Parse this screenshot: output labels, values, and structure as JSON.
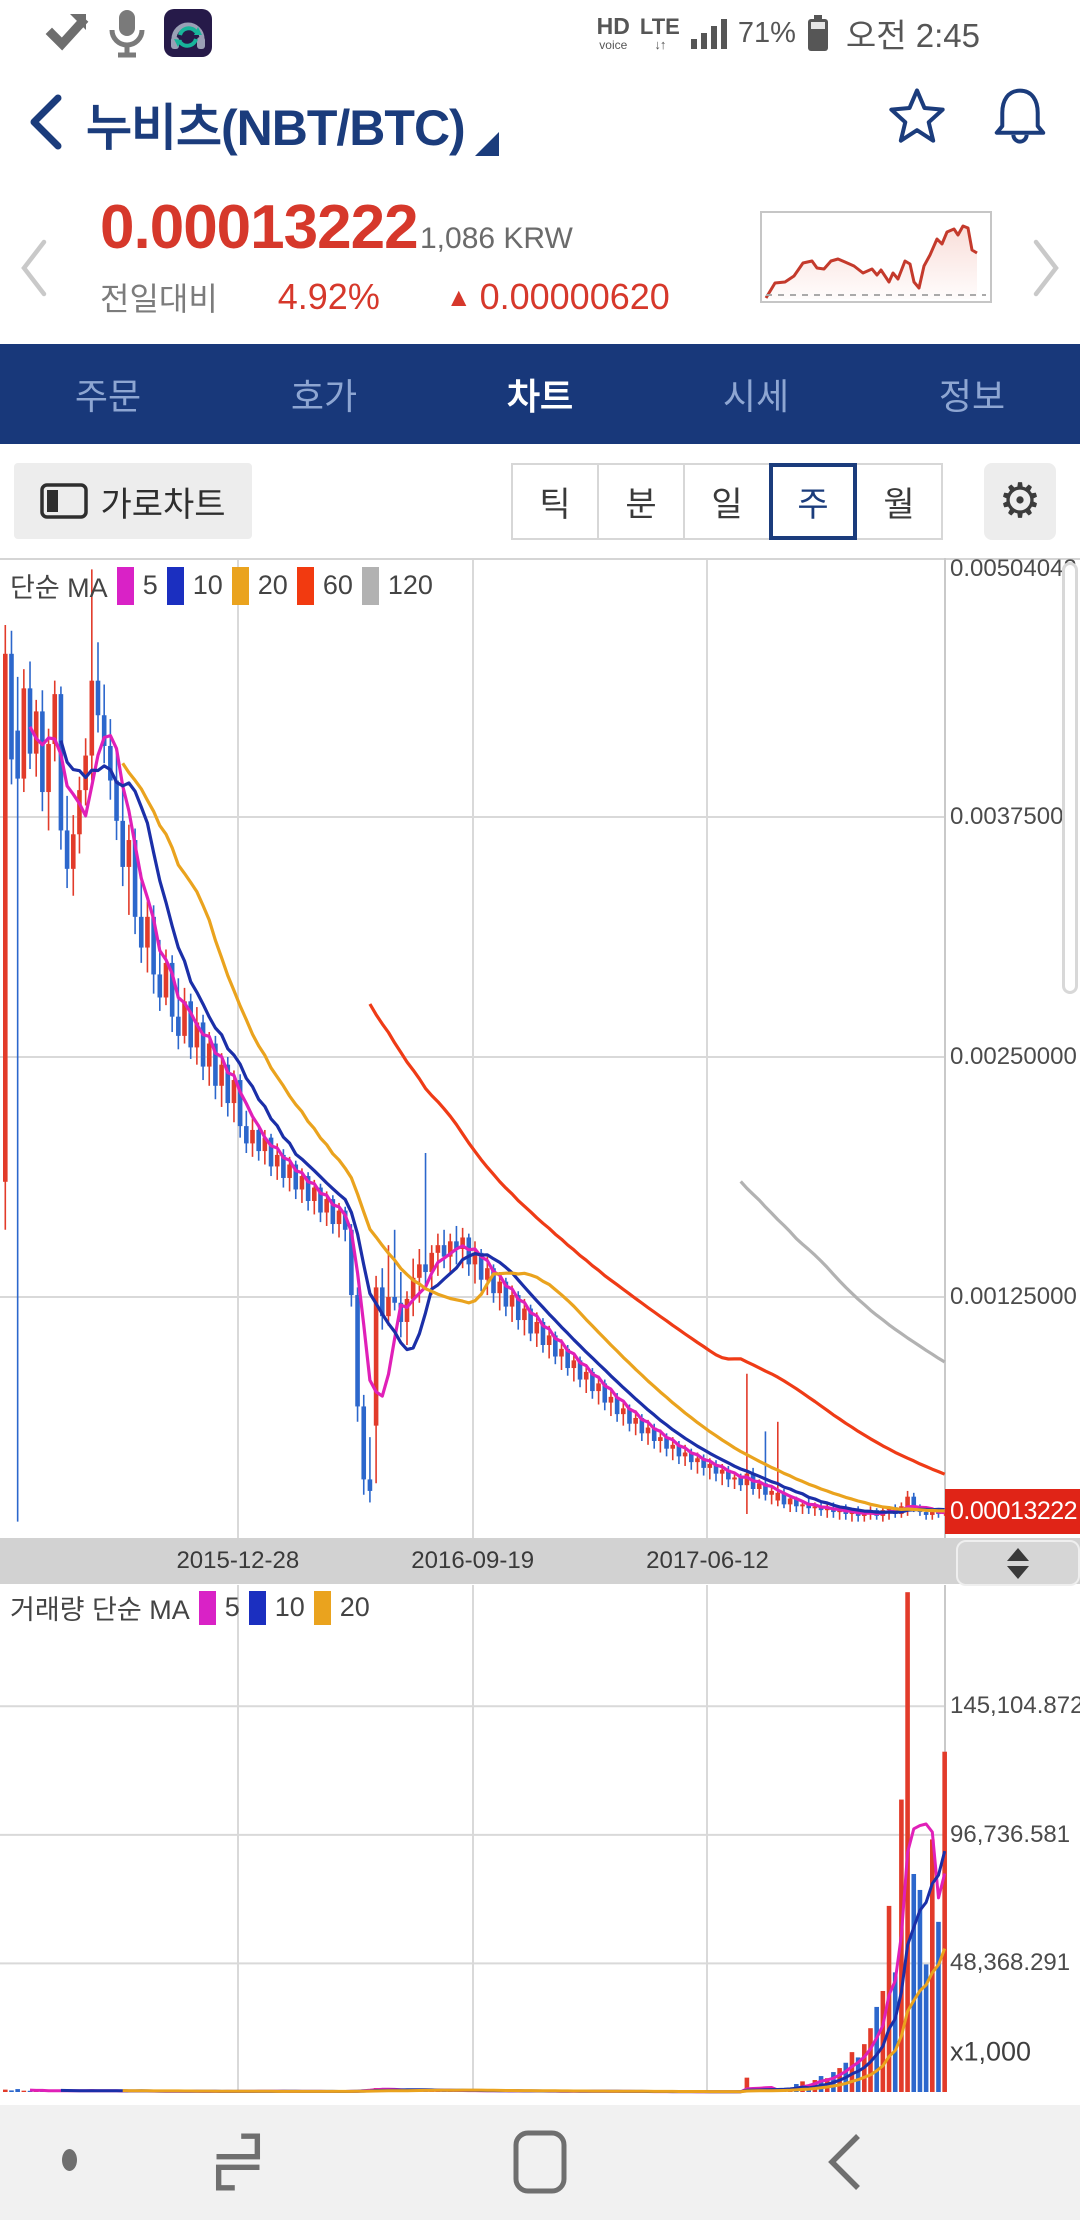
{
  "status_bar": {
    "time": "오전 2:45",
    "battery_pct": "71%",
    "network": "LTE",
    "network_arrows": "↓↑",
    "hd": "HD",
    "hd_sub": "voice",
    "left_icons": [
      "check-badge-icon",
      "microphone-icon",
      "music-sync-app-icon"
    ]
  },
  "header": {
    "title": "누비츠(NBT/BTC)"
  },
  "price_block": {
    "price": "0.00013222",
    "krw": "1,086 KRW",
    "change_label": "전일대비",
    "change_pct": "4.92%",
    "change_arrow": "▲",
    "change_value": "0.00000620"
  },
  "tabs": [
    {
      "label": "주문",
      "active": false
    },
    {
      "label": "호가",
      "active": false
    },
    {
      "label": "차트",
      "active": true
    },
    {
      "label": "시세",
      "active": false
    },
    {
      "label": "정보",
      "active": false
    }
  ],
  "controls": {
    "landscape_label": "가로차트",
    "gear_glyph": "⚙",
    "periods": [
      {
        "label": "틱",
        "selected": false
      },
      {
        "label": "분",
        "selected": false
      },
      {
        "label": "일",
        "selected": false
      },
      {
        "label": "주",
        "selected": true
      },
      {
        "label": "월",
        "selected": false
      }
    ]
  },
  "chart_data": {
    "type": "candlestick_volume",
    "note": "weekly candles [open,high,low,close,volume]; prices in units of 0.00001 BTC, volume in thousands",
    "up_color": "#e23b2a",
    "down_color": "#2c67cc",
    "grid_color": "#d9d9d9",
    "legend_main": {
      "title": "단순 MA",
      "items": [
        {
          "label": "5",
          "color": "#d922c6"
        },
        {
          "label": "10",
          "color": "#1b2fc0"
        },
        {
          "label": "20",
          "color": "#eaa31e"
        },
        {
          "label": "60",
          "color": "#f23a10"
        },
        {
          "label": "120",
          "color": "#b2b2b2"
        }
      ]
    },
    "legend_volume": {
      "title": "거래량 단순 MA",
      "items": [
        {
          "label": "5",
          "color": "#d922c6"
        },
        {
          "label": "10",
          "color": "#1b2fc0"
        },
        {
          "label": "20",
          "color": "#eaa31e"
        }
      ]
    },
    "ma_periods": [
      5,
      10,
      20,
      60,
      120
    ],
    "ma_colors": [
      "#e020b8",
      "#1b2fa8",
      "#eaa31e",
      "#ef3b16",
      "#b2b2b2"
    ],
    "vol_ma_periods": [
      5,
      10,
      20
    ],
    "vol_ma_colors": [
      "#e020b8",
      "#1b2fa8",
      "#eaa31e"
    ],
    "price_axis": [
      {
        "label": "0.00504043",
        "value": 504.043,
        "grid": false
      },
      {
        "label": "0.00375000",
        "value": 375,
        "grid": true
      },
      {
        "label": "0.00250000",
        "value": 250,
        "grid": true
      },
      {
        "label": "0.00125000",
        "value": 125,
        "grid": true
      }
    ],
    "last_price_label": "0.00013222",
    "x_axis_dates": [
      {
        "label": "2015-12-28",
        "week": 38
      },
      {
        "label": "2016-09-19",
        "week": 76
      },
      {
        "label": "2017-06-12",
        "week": 114
      }
    ],
    "volume_axis": [
      {
        "label": "145,104.872",
        "value": 145104.872
      },
      {
        "label": "96,736.581",
        "value": 96736.581
      },
      {
        "label": "48,368.291",
        "value": 48368.291
      }
    ],
    "volume_multiplier": "x1,000",
    "weeks": [
      [
        185,
        475,
        160,
        460,
        900
      ],
      [
        460,
        472,
        392,
        405,
        600
      ],
      [
        420,
        448,
        8,
        395,
        1100
      ],
      [
        395,
        452,
        388,
        442,
        500
      ],
      [
        442,
        456,
        400,
        408,
        450
      ],
      [
        408,
        436,
        396,
        430,
        400
      ],
      [
        430,
        441,
        378,
        388,
        520
      ],
      [
        388,
        421,
        368,
        413,
        380
      ],
      [
        413,
        446,
        404,
        439,
        460
      ],
      [
        439,
        443,
        358,
        368,
        640
      ],
      [
        368,
        386,
        338,
        348,
        560
      ],
      [
        348,
        376,
        334,
        366,
        350
      ],
      [
        366,
        396,
        356,
        389,
        300
      ],
      [
        389,
        416,
        381,
        407,
        380
      ],
      [
        407,
        504,
        394,
        446,
        980
      ],
      [
        446,
        466,
        419,
        428,
        420
      ],
      [
        428,
        444,
        403,
        412,
        330
      ],
      [
        412,
        426,
        384,
        394,
        360
      ],
      [
        394,
        409,
        363,
        373,
        410
      ],
      [
        373,
        391,
        339,
        349,
        450
      ],
      [
        349,
        371,
        324,
        363,
        300
      ],
      [
        363,
        369,
        314,
        323,
        380
      ],
      [
        323,
        346,
        299,
        307,
        420
      ],
      [
        307,
        331,
        294,
        323,
        260
      ],
      [
        323,
        329,
        283,
        293,
        340
      ],
      [
        293,
        311,
        274,
        281,
        300
      ],
      [
        281,
        306,
        277,
        299,
        230
      ],
      [
        299,
        303,
        263,
        271,
        310
      ],
      [
        271,
        291,
        254,
        261,
        270
      ],
      [
        261,
        286,
        257,
        279,
        220
      ],
      [
        279,
        283,
        249,
        255,
        280
      ],
      [
        255,
        276,
        246,
        268,
        200
      ],
      [
        268,
        272,
        238,
        245,
        240
      ],
      [
        245,
        263,
        235,
        257,
        190
      ],
      [
        257,
        261,
        228,
        235,
        230
      ],
      [
        235,
        252,
        224,
        246,
        170
      ],
      [
        246,
        250,
        219,
        226,
        210
      ],
      [
        226,
        243,
        216,
        238,
        160
      ],
      [
        238,
        241,
        208,
        214,
        280
      ],
      [
        214,
        222,
        200,
        205,
        300
      ],
      [
        205,
        218,
        198,
        212,
        260
      ],
      [
        212,
        215,
        196,
        201,
        280
      ],
      [
        201,
        212,
        194,
        208,
        240
      ],
      [
        208,
        210,
        188,
        193,
        260
      ],
      [
        193,
        205,
        186,
        199,
        220
      ],
      [
        199,
        202,
        182,
        187,
        240
      ],
      [
        187,
        198,
        180,
        194,
        210
      ],
      [
        194,
        196,
        176,
        181,
        230
      ],
      [
        181,
        192,
        174,
        188,
        200
      ],
      [
        188,
        190,
        170,
        175,
        220
      ],
      [
        175,
        186,
        168,
        182,
        190
      ],
      [
        182,
        184,
        164,
        169,
        210
      ],
      [
        169,
        180,
        162,
        176,
        180
      ],
      [
        176,
        178,
        158,
        163,
        200
      ],
      [
        163,
        174,
        156,
        170,
        170
      ],
      [
        170,
        172,
        154,
        160,
        190
      ],
      [
        160,
        163,
        120,
        126,
        340
      ],
      [
        126,
        130,
        60,
        68,
        620
      ],
      [
        68,
        74,
        22,
        30,
        980
      ],
      [
        30,
        52,
        18,
        24,
        1150
      ],
      [
        58,
        136,
        28,
        130,
        1500
      ],
      [
        130,
        140,
        108,
        115,
        800
      ],
      [
        115,
        152,
        110,
        125,
        700
      ],
      [
        125,
        160,
        118,
        122,
        750
      ],
      [
        122,
        138,
        104,
        112,
        650
      ],
      [
        112,
        128,
        100,
        124,
        600
      ],
      [
        124,
        145,
        115,
        135,
        650
      ],
      [
        135,
        150,
        122,
        142,
        700
      ],
      [
        142,
        200,
        130,
        138,
        900
      ],
      [
        138,
        152,
        126,
        148,
        600
      ],
      [
        148,
        158,
        136,
        152,
        650
      ],
      [
        152,
        160,
        140,
        146,
        550
      ],
      [
        146,
        158,
        138,
        154,
        600
      ],
      [
        154,
        162,
        142,
        150,
        500
      ],
      [
        150,
        161,
        140,
        156,
        550
      ],
      [
        156,
        158,
        136,
        142,
        500
      ],
      [
        142,
        154,
        132,
        148,
        450
      ],
      [
        148,
        150,
        128,
        134,
        480
      ],
      [
        134,
        146,
        126,
        140,
        420
      ],
      [
        140,
        142,
        122,
        127,
        450
      ],
      [
        127,
        138,
        118,
        133,
        400
      ],
      [
        133,
        135,
        115,
        120,
        430
      ],
      [
        120,
        131,
        112,
        126,
        380
      ],
      [
        126,
        128,
        108,
        113,
        400
      ],
      [
        113,
        124,
        105,
        119,
        350
      ],
      [
        119,
        121,
        102,
        106,
        380
      ],
      [
        106,
        117,
        99,
        112,
        330
      ],
      [
        112,
        114,
        96,
        100,
        350
      ],
      [
        100,
        110,
        93,
        105,
        300
      ],
      [
        105,
        107,
        90,
        94,
        320
      ],
      [
        94,
        103,
        87,
        98,
        280
      ],
      [
        98,
        100,
        84,
        88,
        300
      ],
      [
        88,
        96,
        81,
        92,
        260
      ],
      [
        92,
        94,
        78,
        82,
        280
      ],
      [
        82,
        90,
        75,
        86,
        240
      ],
      [
        86,
        88,
        72,
        76,
        260
      ],
      [
        76,
        84,
        69,
        80,
        220
      ],
      [
        80,
        82,
        66,
        70,
        240
      ],
      [
        70,
        77,
        63,
        73,
        200
      ],
      [
        73,
        75,
        60,
        64,
        220
      ],
      [
        64,
        71,
        58,
        67,
        200
      ],
      [
        67,
        69,
        55,
        59,
        180
      ],
      [
        59,
        66,
        53,
        62,
        160
      ],
      [
        62,
        64,
        50,
        54,
        170
      ],
      [
        54,
        61,
        48,
        57,
        150
      ],
      [
        57,
        59,
        46,
        50,
        160
      ],
      [
        50,
        56,
        44,
        52,
        140
      ],
      [
        52,
        54,
        42,
        46,
        150
      ],
      [
        46,
        52,
        40,
        48,
        130
      ],
      [
        48,
        50,
        38,
        42,
        140
      ],
      [
        42,
        48,
        37,
        44,
        120
      ],
      [
        44,
        46,
        35,
        39,
        130
      ],
      [
        39,
        44,
        33,
        41,
        110
      ],
      [
        41,
        43,
        32,
        36,
        120
      ],
      [
        36,
        41,
        30,
        38,
        100
      ],
      [
        38,
        40,
        29,
        33,
        110
      ],
      [
        33,
        38,
        27,
        35,
        90
      ],
      [
        35,
        37,
        26,
        30,
        100
      ],
      [
        30,
        34,
        25,
        31,
        80
      ],
      [
        31,
        33,
        24,
        27,
        70
      ],
      [
        27,
        85,
        12,
        33,
        5400
      ],
      [
        33,
        36,
        22,
        25,
        900
      ],
      [
        25,
        30,
        20,
        28,
        700
      ],
      [
        28,
        55,
        19,
        22,
        800
      ],
      [
        22,
        27,
        17,
        24,
        600
      ],
      [
        19,
        60,
        16,
        23,
        700
      ],
      [
        23,
        25,
        15,
        17,
        900
      ],
      [
        17,
        22,
        13,
        20,
        1400
      ],
      [
        20,
        21,
        13,
        16,
        3000
      ],
      [
        16,
        19,
        12,
        17,
        4000
      ],
      [
        17,
        20,
        12,
        15,
        2800
      ],
      [
        15,
        18,
        11,
        16,
        4500
      ],
      [
        16,
        19,
        11,
        14,
        6000
      ],
      [
        14,
        17,
        10,
        15,
        5200
      ],
      [
        15,
        18,
        10,
        13,
        7500
      ],
      [
        13,
        16,
        9,
        14,
        9000
      ],
      [
        14,
        17,
        9,
        12,
        11000
      ],
      [
        12,
        15,
        8,
        13,
        15000
      ],
      [
        13,
        16,
        8,
        11,
        13000
      ],
      [
        11,
        14,
        8,
        12,
        18000
      ],
      [
        12,
        16,
        9,
        14,
        24000
      ],
      [
        14,
        15,
        9,
        11,
        32000
      ],
      [
        11,
        15,
        8,
        14,
        38000
      ],
      [
        14,
        16,
        9,
        15.5,
        70000
      ],
      [
        15.5,
        17,
        10,
        12,
        45000
      ],
      [
        12,
        18,
        10,
        16,
        110000
      ],
      [
        16,
        24,
        11,
        21,
        188000
      ],
      [
        21,
        23,
        13,
        15,
        82000
      ],
      [
        15,
        17,
        11,
        13,
        76000
      ],
      [
        13,
        15,
        9,
        11.5,
        48000
      ],
      [
        11.5,
        14,
        9,
        13,
        95000
      ],
      [
        13,
        13.8,
        10,
        12.6,
        64000
      ],
      [
        12.6,
        14,
        11,
        13.222,
        128000
      ]
    ]
  }
}
